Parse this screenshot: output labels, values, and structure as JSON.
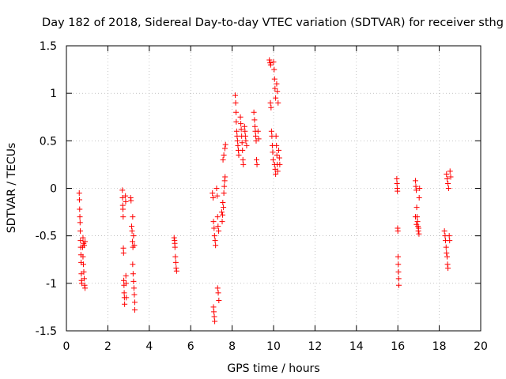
{
  "chart_data": {
    "type": "scatter",
    "title": "Day 182 of 2018, Sidereal Day-to-day VTEC variation (SDTVAR) for receiver sthg",
    "xlabel": "GPS time / hours",
    "ylabel": "SDTVAR / TECUs",
    "xlim": [
      0,
      20
    ],
    "ylim": [
      -1.5,
      1.5
    ],
    "xticks": [
      0,
      2,
      4,
      6,
      8,
      10,
      12,
      14,
      16,
      18,
      20
    ],
    "yticks": [
      -1.5,
      -1,
      -0.5,
      0,
      0.5,
      1,
      1.5
    ],
    "xtick_labels": [
      "0",
      "2",
      "4",
      "6",
      "8",
      "10",
      "12",
      "14",
      "16",
      "18",
      "20"
    ],
    "ytick_labels": [
      "-1.5",
      "-1",
      "-0.5",
      "0",
      "0.5",
      "1",
      "1.5"
    ],
    "grid": true,
    "marker": "+",
    "color": "#ff0000",
    "series": [
      {
        "name": "SDTVAR",
        "points": [
          [
            0.62,
            -0.05
          ],
          [
            0.63,
            -0.12
          ],
          [
            0.64,
            -0.22
          ],
          [
            0.65,
            -0.3
          ],
          [
            0.66,
            -0.36
          ],
          [
            0.67,
            -0.45
          ],
          [
            0.68,
            -0.55
          ],
          [
            0.69,
            -0.62
          ],
          [
            0.7,
            -0.7
          ],
          [
            0.71,
            -0.78
          ],
          [
            0.72,
            -0.9
          ],
          [
            0.73,
            -0.97
          ],
          [
            0.74,
            -1.0
          ],
          [
            0.78,
            -0.62
          ],
          [
            0.8,
            -0.72
          ],
          [
            0.82,
            -0.8
          ],
          [
            0.84,
            -0.88
          ],
          [
            0.86,
            -0.95
          ],
          [
            0.88,
            -1.02
          ],
          [
            0.9,
            -1.05
          ],
          [
            0.8,
            -0.52
          ],
          [
            0.83,
            -0.58
          ],
          [
            0.86,
            -0.6
          ],
          [
            0.9,
            -0.56
          ],
          [
            2.7,
            -0.02
          ],
          [
            2.71,
            -0.1
          ],
          [
            2.72,
            -0.18
          ],
          [
            2.73,
            -0.22
          ],
          [
            2.74,
            -0.3
          ],
          [
            2.75,
            -0.63
          ],
          [
            2.76,
            -0.68
          ],
          [
            2.77,
            -0.97
          ],
          [
            2.78,
            -1.02
          ],
          [
            2.79,
            -1.1
          ],
          [
            2.8,
            -1.15
          ],
          [
            2.81,
            -1.22
          ],
          [
            2.85,
            -0.08
          ],
          [
            2.86,
            -0.14
          ],
          [
            2.87,
            -0.92
          ],
          [
            2.88,
            -1.0
          ],
          [
            2.89,
            -1.15
          ],
          [
            3.1,
            -0.1
          ],
          [
            3.12,
            -0.13
          ],
          [
            3.15,
            -0.4
          ],
          [
            3.17,
            -0.45
          ],
          [
            3.19,
            -0.56
          ],
          [
            3.21,
            -0.62
          ],
          [
            3.2,
            -0.8
          ],
          [
            3.22,
            -0.9
          ],
          [
            3.24,
            -0.98
          ],
          [
            3.26,
            -1.05
          ],
          [
            3.28,
            -1.12
          ],
          [
            3.3,
            -1.2
          ],
          [
            3.3,
            -1.28
          ],
          [
            3.2,
            -0.3
          ],
          [
            3.24,
            -0.5
          ],
          [
            3.28,
            -0.6
          ],
          [
            5.2,
            -0.52
          ],
          [
            5.22,
            -0.55
          ],
          [
            5.23,
            -0.58
          ],
          [
            5.24,
            -0.62
          ],
          [
            5.26,
            -0.72
          ],
          [
            5.28,
            -0.78
          ],
          [
            5.3,
            -0.84
          ],
          [
            5.32,
            -0.87
          ],
          [
            7.05,
            -0.05
          ],
          [
            7.08,
            -0.1
          ],
          [
            7.1,
            -0.35
          ],
          [
            7.13,
            -0.42
          ],
          [
            7.15,
            -0.5
          ],
          [
            7.18,
            -0.55
          ],
          [
            7.2,
            -0.6
          ],
          [
            7.1,
            -1.25
          ],
          [
            7.12,
            -1.3
          ],
          [
            7.14,
            -1.35
          ],
          [
            7.16,
            -1.4
          ],
          [
            7.25,
            -0.0
          ],
          [
            7.28,
            -0.08
          ],
          [
            7.3,
            -0.3
          ],
          [
            7.32,
            -0.4
          ],
          [
            7.35,
            -0.45
          ],
          [
            7.3,
            -1.05
          ],
          [
            7.33,
            -1.1
          ],
          [
            7.36,
            -1.18
          ],
          [
            7.5,
            -0.25
          ],
          [
            7.55,
            -0.15
          ],
          [
            7.6,
            -0.05
          ],
          [
            7.62,
            0.02
          ],
          [
            7.64,
            0.08
          ],
          [
            7.66,
            0.12
          ],
          [
            7.56,
            0.3
          ],
          [
            7.6,
            0.35
          ],
          [
            7.65,
            0.42
          ],
          [
            7.68,
            0.46
          ],
          [
            7.52,
            -0.35
          ],
          [
            7.54,
            -0.28
          ],
          [
            7.58,
            -0.2
          ],
          [
            8.15,
            0.98
          ],
          [
            8.17,
            0.9
          ],
          [
            8.19,
            0.8
          ],
          [
            8.2,
            0.7
          ],
          [
            8.22,
            0.6
          ],
          [
            8.24,
            0.55
          ],
          [
            8.26,
            0.5
          ],
          [
            8.28,
            0.45
          ],
          [
            8.3,
            0.4
          ],
          [
            8.32,
            0.35
          ],
          [
            8.4,
            0.75
          ],
          [
            8.42,
            0.68
          ],
          [
            8.44,
            0.62
          ],
          [
            8.46,
            0.55
          ],
          [
            8.48,
            0.48
          ],
          [
            8.5,
            0.4
          ],
          [
            8.52,
            0.3
          ],
          [
            8.54,
            0.25
          ],
          [
            8.6,
            0.65
          ],
          [
            8.62,
            0.6
          ],
          [
            8.64,
            0.55
          ],
          [
            8.66,
            0.5
          ],
          [
            8.7,
            0.45
          ],
          [
            9.05,
            0.8
          ],
          [
            9.08,
            0.72
          ],
          [
            9.1,
            0.65
          ],
          [
            9.12,
            0.6
          ],
          [
            9.14,
            0.55
          ],
          [
            9.16,
            0.5
          ],
          [
            9.18,
            0.3
          ],
          [
            9.2,
            0.25
          ],
          [
            9.25,
            0.6
          ],
          [
            9.28,
            0.52
          ],
          [
            9.8,
            1.35
          ],
          [
            9.83,
            1.32
          ],
          [
            9.86,
            1.3
          ],
          [
            9.9,
            0.6
          ],
          [
            9.92,
            0.55
          ],
          [
            9.94,
            0.45
          ],
          [
            9.96,
            0.38
          ],
          [
            9.98,
            0.3
          ],
          [
            9.85,
            0.9
          ],
          [
            9.88,
            0.85
          ],
          [
            10.0,
            1.33
          ],
          [
            10.03,
            1.25
          ],
          [
            10.05,
            1.15
          ],
          [
            10.07,
            1.05
          ],
          [
            10.1,
            0.95
          ],
          [
            10.12,
            0.55
          ],
          [
            10.14,
            0.45
          ],
          [
            10.16,
            0.35
          ],
          [
            10.18,
            0.25
          ],
          [
            10.2,
            0.18
          ],
          [
            10.05,
            0.25
          ],
          [
            10.08,
            0.2
          ],
          [
            10.1,
            0.15
          ],
          [
            10.15,
            1.1
          ],
          [
            10.18,
            1.02
          ],
          [
            10.22,
            0.9
          ],
          [
            10.25,
            0.4
          ],
          [
            10.28,
            0.32
          ],
          [
            10.3,
            0.25
          ],
          [
            15.95,
            0.1
          ],
          [
            15.96,
            0.05
          ],
          [
            15.97,
            0.0
          ],
          [
            15.98,
            -0.03
          ],
          [
            15.99,
            -0.42
          ],
          [
            16.0,
            -0.45
          ],
          [
            16.01,
            -0.72
          ],
          [
            16.02,
            -0.8
          ],
          [
            16.03,
            -0.88
          ],
          [
            16.04,
            -0.95
          ],
          [
            16.05,
            -1.02
          ],
          [
            16.85,
            0.08
          ],
          [
            16.87,
            0.02
          ],
          [
            16.89,
            -0.02
          ],
          [
            16.91,
            -0.2
          ],
          [
            16.93,
            -0.3
          ],
          [
            16.95,
            -0.35
          ],
          [
            16.97,
            -0.4
          ],
          [
            16.99,
            -0.45
          ],
          [
            16.85,
            -0.3
          ],
          [
            16.9,
            -0.38
          ],
          [
            17.0,
            -0.42
          ],
          [
            17.02,
            -0.48
          ],
          [
            17.05,
            0.0
          ],
          [
            17.03,
            -0.1
          ],
          [
            18.25,
            -0.45
          ],
          [
            18.28,
            -0.5
          ],
          [
            18.3,
            -0.55
          ],
          [
            18.33,
            -0.62
          ],
          [
            18.35,
            -0.68
          ],
          [
            18.38,
            -0.72
          ],
          [
            18.4,
            -0.8
          ],
          [
            18.42,
            -0.84
          ],
          [
            18.35,
            0.15
          ],
          [
            18.38,
            0.1
          ],
          [
            18.42,
            0.05
          ],
          [
            18.45,
            0.0
          ],
          [
            18.48,
            -0.5
          ],
          [
            18.5,
            -0.55
          ],
          [
            18.52,
            0.18
          ],
          [
            18.55,
            0.12
          ]
        ]
      }
    ]
  }
}
